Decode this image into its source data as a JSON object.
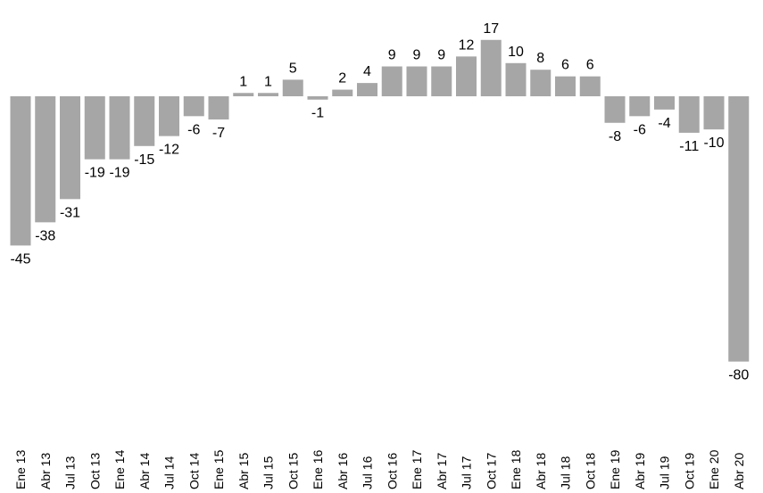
{
  "chart_data": {
    "type": "bar",
    "categories": [
      "Ene 13",
      "Abr 13",
      "Jul 13",
      "Oct 13",
      "Ene 14",
      "Abr 14",
      "Jul 14",
      "Oct 14",
      "Ene 15",
      "Abr 15",
      "Jul 15",
      "Oct 15",
      "Ene 16",
      "Abr 16",
      "Jul 16",
      "Oct 16",
      "Ene 17",
      "Abr 17",
      "Jul 17",
      "Oct 17",
      "Ene 18",
      "Abr 18",
      "Jul 18",
      "Oct 18",
      "Ene 19",
      "Abr 19",
      "Jul 19",
      "Oct 19",
      "Ene 20",
      "Abr 20"
    ],
    "values": [
      -45,
      -38,
      -31,
      -19,
      -19,
      -15,
      -12,
      -6,
      -7,
      1,
      1,
      5,
      -1,
      2,
      4,
      9,
      9,
      9,
      12,
      17,
      10,
      8,
      6,
      6,
      -8,
      -6,
      -4,
      -11,
      -10,
      -80
    ],
    "title": "",
    "xlabel": "",
    "ylabel": "",
    "ylim": [
      -80,
      17
    ],
    "grid": false,
    "legend": "none",
    "bar_color": "#a6a6a6"
  }
}
